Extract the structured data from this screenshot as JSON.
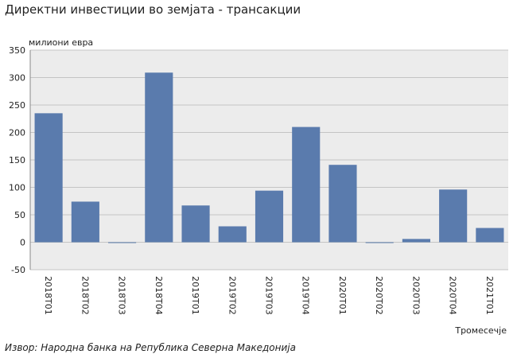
{
  "chart_data": {
    "type": "bar",
    "title": "Директни инвестиции во земјата - трансакции",
    "ylabel": "милиони евра",
    "xlabel": "Тромесечје",
    "source": "Извор: Народна банка на Република Северна Македонија",
    "categories": [
      "2018Т01",
      "2018Т02",
      "2018Т03",
      "2018Т04",
      "2019Т01",
      "2019Т02",
      "2019Т03",
      "2019Т04",
      "2020Т01",
      "2020Т02",
      "2020Т03",
      "2020Т04",
      "2021Т01"
    ],
    "values": [
      235,
      74,
      -1,
      309,
      67,
      29,
      94,
      210,
      141,
      -1,
      6,
      96,
      26
    ],
    "ylim": [
      -50,
      350
    ],
    "yticks": [
      -50,
      0,
      50,
      100,
      150,
      200,
      250,
      300,
      350
    ],
    "grid": true,
    "legend": "none",
    "colors": {
      "bar": "#5a7bad",
      "plot_bg": "#ececec",
      "grid": "#c4c4c4"
    }
  }
}
